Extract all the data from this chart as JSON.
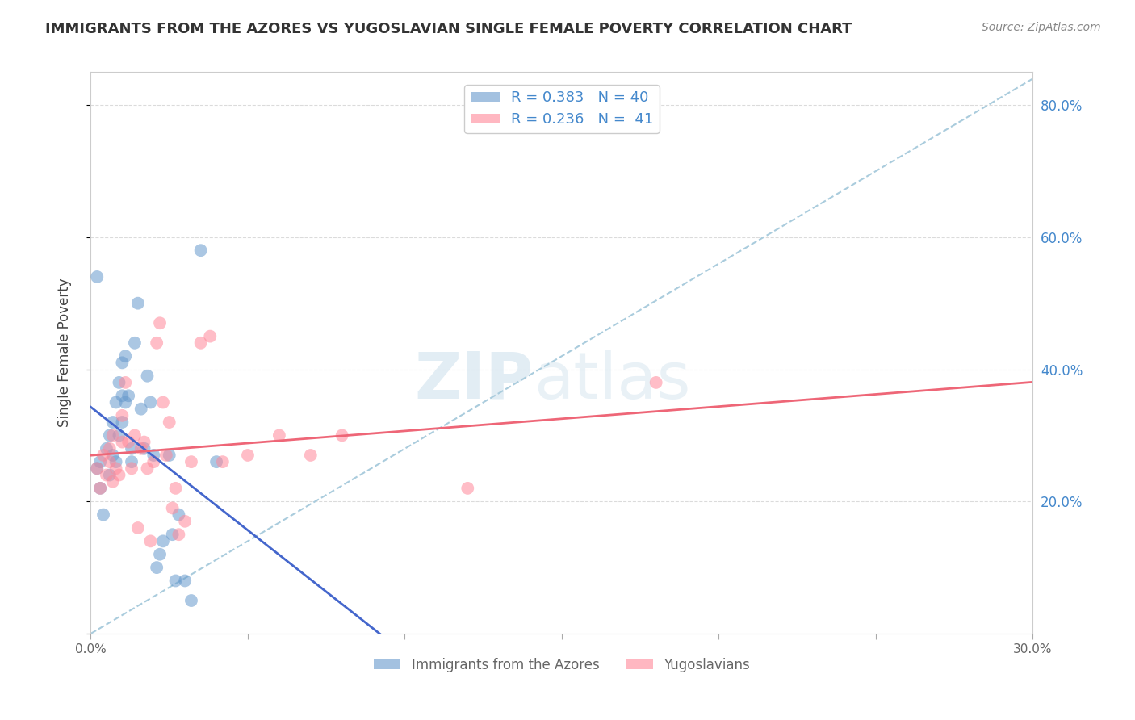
{
  "title": "IMMIGRANTS FROM THE AZORES VS YUGOSLAVIAN SINGLE FEMALE POVERTY CORRELATION CHART",
  "source": "Source: ZipAtlas.com",
  "ylabel": "Single Female Poverty",
  "xlim": [
    0.0,
    0.3
  ],
  "ylim": [
    0.0,
    0.85
  ],
  "legend_r1": "R = 0.383",
  "legend_n1": "N = 40",
  "legend_r2": "R = 0.236",
  "legend_n2": "N =  41",
  "color_blue": "#6699CC",
  "color_pink": "#FF8899",
  "color_blue_line": "#4466CC",
  "color_pink_line": "#EE6677",
  "color_diag": "#AACCDD",
  "watermark_zip": "ZIP",
  "watermark_atlas": "atlas",
  "blue_x": [
    0.002,
    0.003,
    0.003,
    0.004,
    0.005,
    0.006,
    0.006,
    0.007,
    0.007,
    0.008,
    0.008,
    0.009,
    0.009,
    0.01,
    0.01,
    0.01,
    0.011,
    0.011,
    0.012,
    0.013,
    0.013,
    0.014,
    0.015,
    0.016,
    0.017,
    0.018,
    0.019,
    0.02,
    0.021,
    0.022,
    0.023,
    0.025,
    0.026,
    0.027,
    0.028,
    0.03,
    0.032,
    0.035,
    0.04,
    0.002
  ],
  "blue_y": [
    0.25,
    0.22,
    0.26,
    0.18,
    0.28,
    0.3,
    0.24,
    0.27,
    0.32,
    0.35,
    0.26,
    0.38,
    0.3,
    0.32,
    0.36,
    0.41,
    0.35,
    0.42,
    0.36,
    0.26,
    0.28,
    0.44,
    0.5,
    0.34,
    0.28,
    0.39,
    0.35,
    0.27,
    0.1,
    0.12,
    0.14,
    0.27,
    0.15,
    0.08,
    0.18,
    0.08,
    0.05,
    0.58,
    0.26,
    0.54
  ],
  "pink_x": [
    0.002,
    0.003,
    0.004,
    0.005,
    0.006,
    0.006,
    0.007,
    0.007,
    0.008,
    0.009,
    0.01,
    0.01,
    0.011,
    0.012,
    0.013,
    0.014,
    0.015,
    0.016,
    0.017,
    0.018,
    0.019,
    0.02,
    0.021,
    0.022,
    0.023,
    0.024,
    0.025,
    0.026,
    0.027,
    0.028,
    0.03,
    0.032,
    0.035,
    0.038,
    0.042,
    0.05,
    0.06,
    0.07,
    0.08,
    0.12,
    0.18
  ],
  "pink_y": [
    0.25,
    0.22,
    0.27,
    0.24,
    0.26,
    0.28,
    0.3,
    0.23,
    0.25,
    0.24,
    0.29,
    0.33,
    0.38,
    0.29,
    0.25,
    0.3,
    0.16,
    0.28,
    0.29,
    0.25,
    0.14,
    0.26,
    0.44,
    0.47,
    0.35,
    0.27,
    0.32,
    0.19,
    0.22,
    0.15,
    0.17,
    0.26,
    0.44,
    0.45,
    0.26,
    0.27,
    0.3,
    0.27,
    0.3,
    0.22,
    0.38
  ],
  "background_color": "#FFFFFF",
  "grid_color": "#CCCCCC"
}
